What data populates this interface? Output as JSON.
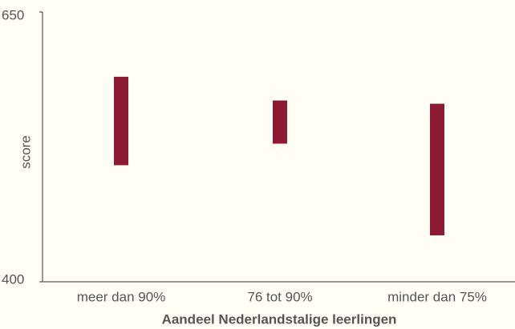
{
  "chart_data": {
    "type": "range",
    "ylabel": "score",
    "xlabel": "Aandeel Nederlandstalige leerlingen",
    "categories": [
      "meer dan 90%",
      "76 tot 90%",
      "minder dan 75%"
    ],
    "low": [
      508,
      528,
      443
    ],
    "high": [
      590,
      568,
      565
    ],
    "color": "#8c1a32",
    "ylim": [
      400,
      650
    ],
    "yticks": [
      400,
      650
    ]
  }
}
